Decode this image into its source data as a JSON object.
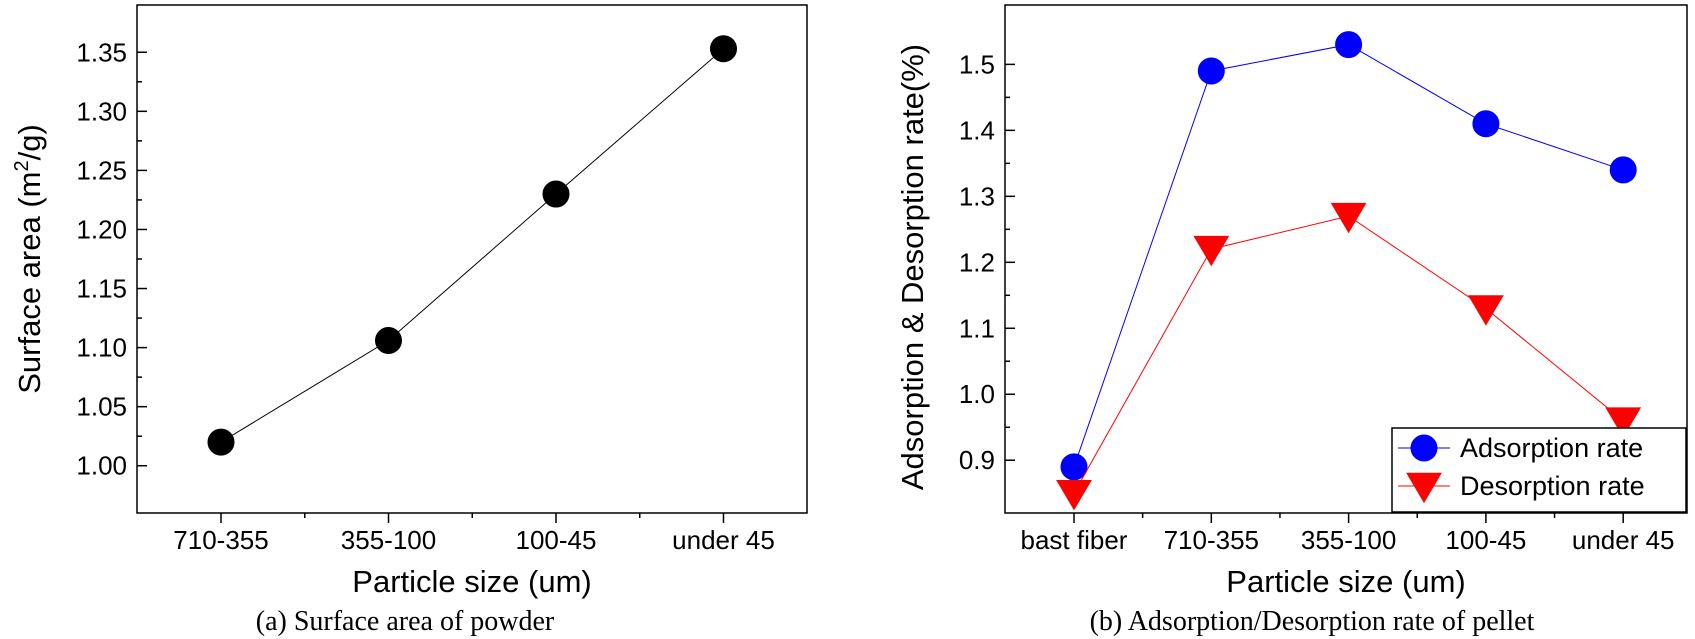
{
  "chart_data": [
    {
      "type": "line",
      "title": "",
      "caption": "(a) Surface area of powder",
      "xlabel": "Particle size (um)",
      "ylabel_prefix": "Surface area (m",
      "ylabel_sup": "2",
      "ylabel_suffix": "/g)",
      "categories": [
        "710-355",
        "355-100",
        "100-45",
        "under 45"
      ],
      "ylim": [
        0.96,
        1.39
      ],
      "yticks": [
        "1.00",
        "1.05",
        "1.10",
        "1.15",
        "1.20",
        "1.25",
        "1.30",
        "1.35"
      ],
      "series": [
        {
          "name": "Surface area",
          "color": "#000000",
          "marker": "circle",
          "values": [
            1.02,
            1.106,
            1.23,
            1.353
          ]
        }
      ]
    },
    {
      "type": "line",
      "title": "",
      "caption": "(b) Adsorption/Desorption rate of pellet",
      "xlabel": "Particle size (um)",
      "ylabel": "Adsorption & Desorption rate(%)",
      "categories": [
        "bast fiber",
        "710-355",
        "355-100",
        "100-45",
        "under 45"
      ],
      "ylim": [
        0.82,
        1.59
      ],
      "yticks": [
        "0.9",
        "1.0",
        "1.1",
        "1.2",
        "1.3",
        "1.4",
        "1.5"
      ],
      "legend_position": "bottom-right",
      "series": [
        {
          "name": "Adsorption rate",
          "color": "#0000ff",
          "marker": "circle",
          "values": [
            0.89,
            1.49,
            1.53,
            1.41,
            1.34
          ]
        },
        {
          "name": "Desorption rate",
          "color": "#ff0000",
          "marker": "triangle-down",
          "values": [
            0.85,
            1.22,
            1.27,
            1.13,
            0.96
          ]
        }
      ]
    }
  ]
}
